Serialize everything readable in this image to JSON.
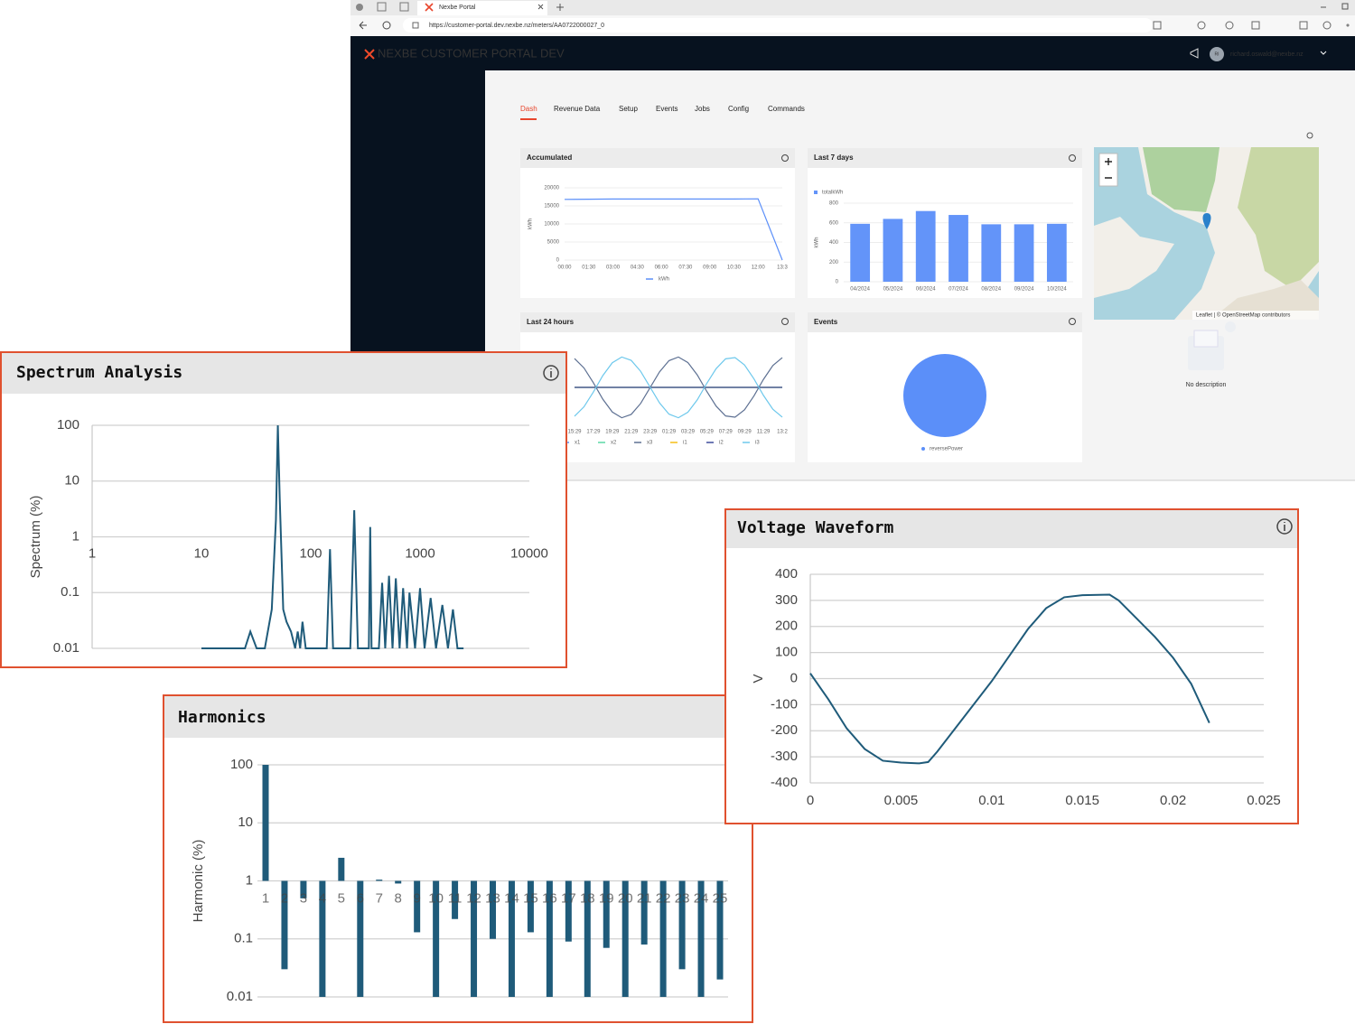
{
  "browser": {
    "tab_title": "Nexbe Portal",
    "url": "https://customer-portal.dev.nexbe.nz/meters/AA0722000027_0"
  },
  "header": {
    "brand": "NEXBE",
    "title": "CUSTOMER PORTAL",
    "env": "DEV",
    "user_initials": "RI",
    "user": "richard.oswald@nexbe.nz"
  },
  "tabs": [
    "Dash",
    "Revenue Data",
    "Setup",
    "Events",
    "Jobs",
    "Config",
    "Commands"
  ],
  "map": {
    "attribution": "Leaflet | © OpenStreetMap contributors",
    "no_description": "No description"
  },
  "chart_data": [
    {
      "type": "line",
      "title": "Accumulated",
      "ylabel": "kWh",
      "categories": [
        "00:00",
        "01:30",
        "03:00",
        "04:30",
        "06:00",
        "07:30",
        "09:00",
        "10:30",
        "12:00",
        "13:3"
      ],
      "series": [
        {
          "name": "kWh",
          "color": "#5b8ff9",
          "values": [
            16800,
            16850,
            16900,
            16900,
            16900,
            16900,
            16900,
            16900,
            16950,
            0
          ]
        }
      ],
      "ylim": [
        0,
        20000
      ],
      "yticks": [
        0,
        5000,
        10000,
        15000,
        20000
      ],
      "grid": true
    },
    {
      "type": "bar",
      "title": "Last 7 days",
      "ylabel": "kWh",
      "categories": [
        "04/2024",
        "05/2024",
        "06/2024",
        "07/2024",
        "08/2024",
        "09/2024",
        "10/2024"
      ],
      "series": [
        {
          "name": "totalkWh",
          "color": "#6394f9",
          "values": [
            590,
            640,
            720,
            680,
            585,
            585,
            590
          ]
        }
      ],
      "ylim": [
        0,
        800
      ],
      "yticks": [
        0,
        200,
        400,
        600,
        800
      ],
      "grid": true
    },
    {
      "type": "line",
      "title": "Last 24 hours",
      "categories": [
        "15:29",
        null,
        "17:29",
        null,
        "19:29",
        null,
        "21:29",
        null,
        "23:29",
        null,
        "01:29",
        null,
        "03:29",
        null,
        "05:29",
        null,
        "07:29",
        null,
        "09:29",
        null,
        "11:29",
        null,
        "13:2"
      ],
      "series": [
        {
          "name": "x1",
          "color": "#5b8ff9",
          "values": [
            0,
            0,
            0,
            0,
            0,
            0,
            0,
            0,
            0,
            0,
            0,
            0,
            0,
            0,
            0,
            0,
            0,
            0,
            0,
            0,
            0,
            0,
            0
          ]
        },
        {
          "name": "x2",
          "color": "#5ad8a6",
          "values": [
            0,
            0,
            0,
            0,
            0,
            0,
            0,
            0,
            0,
            0,
            0,
            0,
            0,
            0,
            0,
            0,
            0,
            0,
            0,
            0,
            0,
            0,
            0
          ]
        },
        {
          "name": "x3",
          "color": "#5d7092",
          "values": [
            0.95,
            0.64,
            0.15,
            -0.39,
            -0.81,
            -1,
            -0.89,
            -0.53,
            -0.01,
            0.51,
            0.88,
            1,
            0.82,
            0.41,
            -0.13,
            -0.62,
            -0.94,
            -0.98,
            -0.74,
            -0.28,
            0.26,
            0.72,
            0.98
          ]
        },
        {
          "name": "i1",
          "color": "#f6bd16",
          "values": [
            0,
            0,
            0,
            0,
            0,
            0,
            0,
            0,
            0,
            0,
            0,
            0,
            0,
            0,
            0,
            0,
            0,
            0,
            0,
            0,
            0,
            0,
            0
          ]
        },
        {
          "name": "i2",
          "color": "#3f4e9c",
          "values": [
            0,
            0,
            0,
            0,
            0,
            0,
            0,
            0,
            0,
            0,
            0,
            0,
            0,
            0,
            0,
            0,
            0,
            0,
            0,
            0,
            0,
            0,
            0
          ]
        },
        {
          "name": "i3",
          "color": "#6dc8ec",
          "values": [
            -0.95,
            -0.64,
            -0.15,
            0.39,
            0.81,
            1,
            0.89,
            0.53,
            0.01,
            -0.51,
            -0.88,
            -1,
            -0.82,
            -0.41,
            0.13,
            0.62,
            0.94,
            0.98,
            0.74,
            0.28,
            -0.26,
            -0.72,
            -0.98
          ]
        }
      ],
      "ylim": [
        -1.1,
        1.1
      ],
      "grid": true
    },
    {
      "type": "pie",
      "title": "Events",
      "categories": [
        "reversePower"
      ],
      "values": [
        100
      ],
      "colors": [
        "#5b8ff9"
      ]
    },
    {
      "type": "line",
      "title": "Spectrum Analysis",
      "ylabel": "Spectrum (%)",
      "xscale": "log",
      "yscale": "log",
      "x": [
        10,
        11,
        25,
        28,
        32,
        38,
        44,
        48,
        50,
        52,
        56,
        60,
        66,
        72,
        76,
        80,
        84,
        90,
        100,
        140,
        150,
        160,
        230,
        250,
        270,
        340,
        350,
        360,
        420,
        450,
        480,
        520,
        560,
        600,
        650,
        700,
        760,
        800,
        900,
        1000,
        1100,
        1250,
        1400,
        1600,
        1800,
        2000,
        2200,
        2500
      ],
      "values": [
        0.01,
        0.01,
        0.01,
        0.02,
        0.01,
        0.01,
        0.05,
        2,
        100,
        5,
        0.05,
        0.03,
        0.02,
        0.01,
        0.02,
        0.01,
        0.03,
        0.01,
        0.01,
        0.01,
        0.6,
        0.01,
        0.01,
        3,
        0.01,
        0.01,
        1.5,
        0.01,
        0.01,
        0.15,
        0.01,
        0.2,
        0.01,
        0.18,
        0.01,
        0.12,
        0.01,
        0.1,
        0.01,
        0.12,
        0.01,
        0.08,
        0.01,
        0.06,
        0.01,
        0.05,
        0.01,
        0.01
      ],
      "color": "#1f5b7a",
      "xlim": [
        1,
        10000
      ],
      "xticks": [
        1,
        10,
        100,
        1000,
        10000
      ],
      "ylim": [
        0.01,
        100
      ],
      "yticks": [
        0.01,
        0.1,
        1,
        10,
        100
      ],
      "grid": true
    },
    {
      "type": "bar",
      "title": "Harmonics",
      "ylabel": "Harmonic (%)",
      "yscale": "log",
      "categories": [
        "1",
        "2",
        "3",
        "4",
        "5",
        "6",
        "7",
        "8",
        "9",
        "10",
        "11",
        "12",
        "13",
        "14",
        "15",
        "16",
        "17",
        "18",
        "19",
        "20",
        "21",
        "22",
        "23",
        "24",
        "25"
      ],
      "values": [
        100,
        0.03,
        0.5,
        0.01,
        2.5,
        0.01,
        1.05,
        0.9,
        0.13,
        0.01,
        0.22,
        0.01,
        0.1,
        0.01,
        0.13,
        0.01,
        0.09,
        0.01,
        0.07,
        0.01,
        0.08,
        0.01,
        0.03,
        0.01,
        0.02
      ],
      "color": "#1f5b7a",
      "ylim": [
        0.01,
        100
      ],
      "yticks": [
        0.01,
        0.1,
        1,
        10,
        100
      ],
      "grid": true
    },
    {
      "type": "line",
      "title": "Voltage Waveform",
      "ylabel": "V",
      "x": [
        0,
        0.001,
        0.002,
        0.003,
        0.004,
        0.005,
        0.006,
        0.0065,
        0.007,
        0.008,
        0.009,
        0.01,
        0.011,
        0.012,
        0.013,
        0.014,
        0.015,
        0.0165,
        0.017,
        0.018,
        0.019,
        0.02,
        0.021,
        0.022
      ],
      "values": [
        20,
        -80,
        -190,
        -270,
        -315,
        -322,
        -325,
        -320,
        -280,
        -190,
        -100,
        -10,
        90,
        190,
        270,
        312,
        320,
        322,
        300,
        230,
        160,
        80,
        -20,
        -170
      ],
      "color": "#1f5b7a",
      "xlim": [
        0,
        0.025
      ],
      "xticks": [
        0,
        0.005,
        0.01,
        0.015,
        0.02,
        0.025
      ],
      "ylim": [
        -400,
        400
      ],
      "yticks": [
        -400,
        -300,
        -200,
        -100,
        0,
        100,
        200,
        300,
        400
      ],
      "grid": true
    }
  ]
}
